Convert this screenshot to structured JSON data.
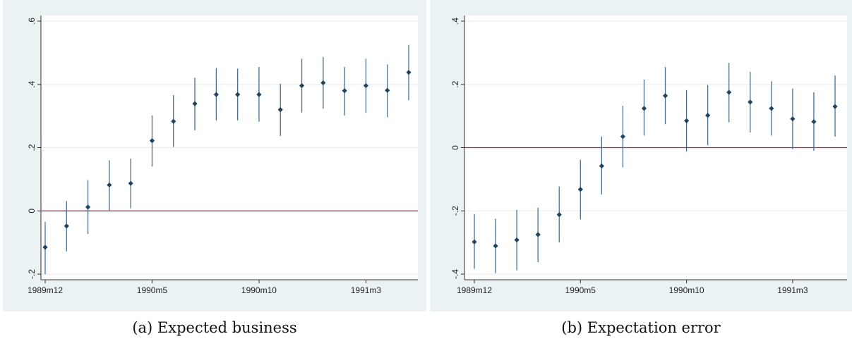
{
  "chart_data": [
    {
      "type": "scatter",
      "caption": "(a) Expected business",
      "x_ticks": [
        "1989m12",
        "1990m5",
        "1990m10",
        "1991m3"
      ],
      "y_ticks": [
        "-.2",
        "0",
        ".2",
        ".4",
        ".6"
      ],
      "y_tick_values": [
        -0.2,
        0,
        0.2,
        0.4,
        0.6
      ],
      "ylim": [
        -0.2,
        0.6
      ],
      "reference_line": 0,
      "grid": true,
      "x": [
        "1989m12",
        "1990m1",
        "1990m2",
        "1990m3",
        "1990m4",
        "1990m5",
        "1990m6",
        "1990m7",
        "1990m8",
        "1990m9",
        "1990m10",
        "1990m11",
        "1990m12",
        "1991m1",
        "1991m2",
        "1991m3",
        "1991m4",
        "1991m5"
      ],
      "estimate": [
        -0.115,
        -0.048,
        0.012,
        0.082,
        0.087,
        0.222,
        0.283,
        0.339,
        0.368,
        0.368,
        0.368,
        0.32,
        0.396,
        0.405,
        0.38,
        0.396,
        0.381,
        0.438
      ],
      "ci_low": [
        -0.2,
        -0.128,
        -0.073,
        0.002,
        0.008,
        0.14,
        0.202,
        0.255,
        0.286,
        0.286,
        0.282,
        0.237,
        0.311,
        0.323,
        0.302,
        0.31,
        0.296,
        0.35
      ],
      "ci_high": [
        -0.035,
        0.031,
        0.097,
        0.16,
        0.165,
        0.302,
        0.366,
        0.421,
        0.452,
        0.45,
        0.455,
        0.402,
        0.481,
        0.487,
        0.455,
        0.481,
        0.463,
        0.525
      ]
    },
    {
      "type": "scatter",
      "caption": "(b) Expectation error",
      "x_ticks": [
        "1989m12",
        "1990m5",
        "1990m10",
        "1991m3"
      ],
      "y_ticks": [
        "-.4",
        "-.2",
        "0",
        ".2",
        ".4"
      ],
      "y_tick_values": [
        -0.4,
        -0.2,
        0,
        0.2,
        0.4
      ],
      "ylim": [
        -0.4,
        0.4
      ],
      "reference_line": 0,
      "grid": true,
      "x": [
        "1989m12",
        "1990m1",
        "1990m2",
        "1990m3",
        "1990m4",
        "1990m5",
        "1990m6",
        "1990m7",
        "1990m8",
        "1990m9",
        "1990m10",
        "1990m11",
        "1990m12",
        "1991m1",
        "1991m2",
        "1991m3",
        "1991m4",
        "1991m5"
      ],
      "estimate": [
        -0.298,
        -0.311,
        -0.292,
        -0.275,
        -0.212,
        -0.132,
        -0.058,
        0.035,
        0.124,
        0.164,
        0.085,
        0.102,
        0.175,
        0.144,
        0.124,
        0.091,
        0.082,
        0.13
      ],
      "ci_low": [
        -0.383,
        -0.397,
        -0.388,
        -0.362,
        -0.3,
        -0.227,
        -0.148,
        -0.062,
        0.038,
        0.074,
        -0.012,
        0.008,
        0.08,
        0.048,
        0.038,
        -0.005,
        -0.01,
        0.035
      ],
      "ci_high": [
        -0.21,
        -0.225,
        -0.197,
        -0.19,
        -0.123,
        -0.038,
        0.035,
        0.132,
        0.215,
        0.255,
        0.182,
        0.198,
        0.268,
        0.24,
        0.21,
        0.187,
        0.175,
        0.228
      ]
    }
  ]
}
